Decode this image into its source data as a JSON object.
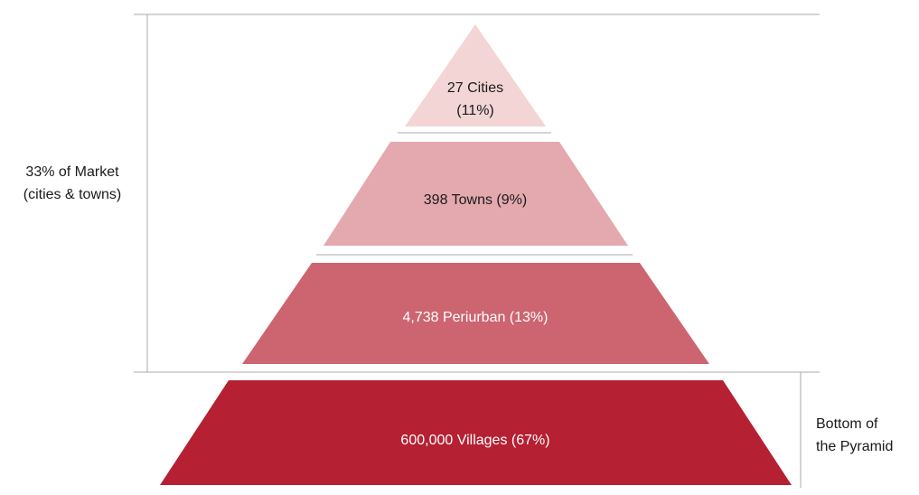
{
  "levels": [
    {
      "lines": [
        "27 Cities",
        "(11%)"
      ]
    },
    {
      "lines": [
        "398 Towns (9%)"
      ]
    },
    {
      "lines": [
        "4,738 Periurban (13%)"
      ]
    },
    {
      "lines": [
        "600,000 Villages (67%)"
      ]
    }
  ],
  "annotations": {
    "left": [
      "33% of Market",
      "(cities & towns)"
    ],
    "right": [
      "Bottom of",
      "the Pyramid"
    ]
  }
}
